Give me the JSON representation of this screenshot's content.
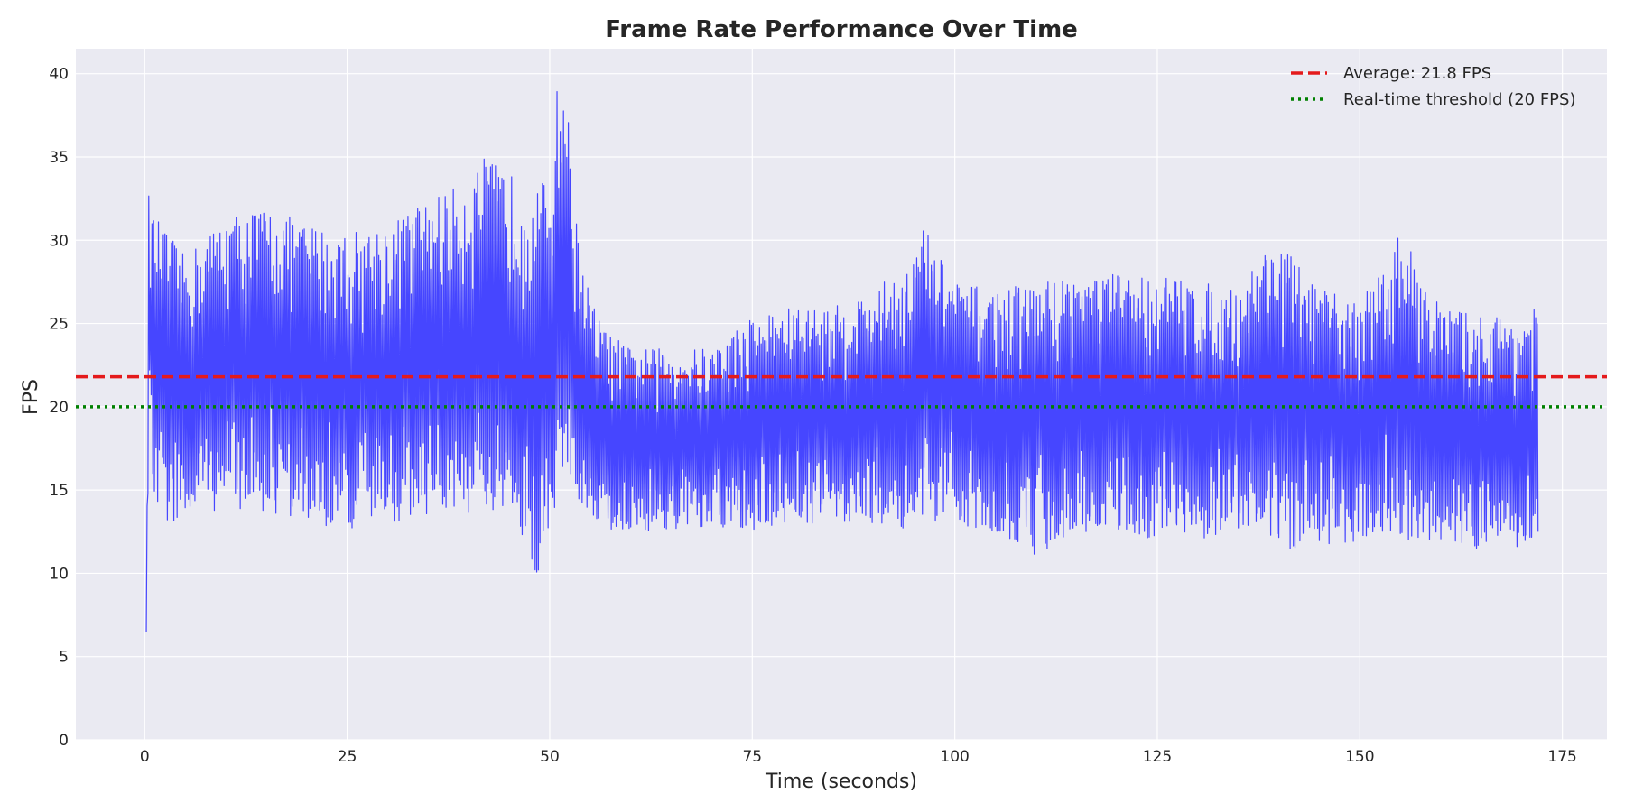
{
  "chart_data": {
    "type": "line",
    "title": "Frame Rate Performance Over Time",
    "xlabel": "Time (seconds)",
    "ylabel": "FPS",
    "xlim": [
      -8.5,
      180.5
    ],
    "ylim": [
      0,
      41.5
    ],
    "x_ticks": [
      0,
      25,
      50,
      75,
      100,
      125,
      150,
      175
    ],
    "y_ticks": [
      0,
      5,
      10,
      15,
      20,
      25,
      30,
      35,
      40
    ],
    "grid": true,
    "legend_position": "top-right",
    "series": [
      {
        "kind": "data",
        "color": "#4646ff",
        "sampling_interval_s": 0.1,
        "x": [
          0.2,
          0.5,
          1.0,
          2.0,
          5.0,
          10.0,
          15.0,
          20.0,
          25.0,
          30.0,
          35.0,
          40.0,
          42.0,
          45.0,
          48.5,
          50.0,
          51.0,
          52.0,
          53.0,
          55.0,
          57.0,
          60.0,
          65.0,
          70.0,
          75.0,
          80.0,
          85.0,
          90.0,
          95.0,
          96.0,
          100.0,
          105.0,
          110.0,
          115.0,
          120.0,
          125.0,
          130.0,
          135.0,
          138.0,
          140.0,
          145.0,
          150.0,
          154.0,
          155.0,
          160.0,
          165.0,
          170.0,
          172.0
        ],
        "y_high": [
          6.5,
          32.8,
          31.5,
          31.0,
          29.0,
          31.5,
          32.0,
          31.0,
          30.5,
          31.0,
          32.5,
          33.5,
          35.0,
          34.0,
          33.5,
          33.5,
          39.7,
          39.5,
          32.0,
          26.5,
          24.5,
          23.5,
          23.5,
          23.5,
          25.5,
          26.0,
          26.0,
          27.0,
          29.0,
          31.0,
          27.5,
          27.0,
          27.5,
          28.0,
          28.0,
          28.0,
          27.5,
          27.0,
          29.5,
          30.0,
          27.0,
          26.5,
          29.0,
          30.7,
          26.0,
          25.5,
          25.5,
          26.0
        ],
        "y_low": [
          6.5,
          18.5,
          14.5,
          13.0,
          13.0,
          14.0,
          13.5,
          13.0,
          12.5,
          13.0,
          13.5,
          13.5,
          13.0,
          13.0,
          9.8,
          13.0,
          14.0,
          16.5,
          14.5,
          13.5,
          12.5,
          12.5,
          12.5,
          12.5,
          12.5,
          13.0,
          13.0,
          13.0,
          12.5,
          12.5,
          13.0,
          12.5,
          11.0,
          12.5,
          12.5,
          12.0,
          12.0,
          12.5,
          12.5,
          11.3,
          11.5,
          12.0,
          12.5,
          12.0,
          11.5,
          11.5,
          11.2,
          12.0
        ]
      },
      {
        "kind": "hline",
        "name": "Average: 21.8 FPS",
        "y": 21.8,
        "color": "#e41a1c",
        "style": "dashed"
      },
      {
        "kind": "hline",
        "name": "Real-time threshold (20 FPS)",
        "y": 20,
        "color": "#008000",
        "style": "dotted"
      }
    ]
  }
}
